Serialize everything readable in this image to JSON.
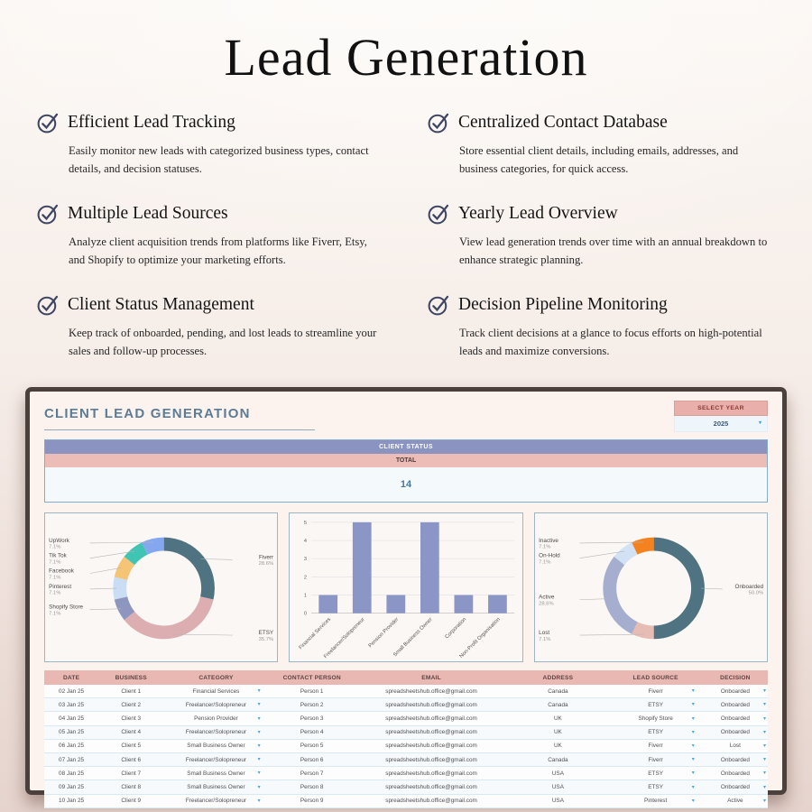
{
  "page": {
    "title": "Lead Generation"
  },
  "features": [
    {
      "title": "Efficient Lead Tracking",
      "desc": "Easily monitor new leads with categorized business types, contact details, and decision statuses."
    },
    {
      "title": "Centralized Contact Database",
      "desc": "Store essential client details, including emails, addresses, and business categories, for quick access."
    },
    {
      "title": "Multiple Lead Sources",
      "desc": "Analyze client acquisition trends from platforms like Fiverr, Etsy, and Shopify to optimize your marketing efforts."
    },
    {
      "title": "Yearly Lead Overview",
      "desc": "View lead generation trends over time with an annual breakdown to enhance strategic planning."
    },
    {
      "title": "Client Status Management",
      "desc": "Keep track of onboarded, pending, and lost leads to streamline your sales and follow-up processes."
    },
    {
      "title": "Decision Pipeline Monitoring",
      "desc": "Track client decisions at a glance to focus efforts on high-potential leads and maximize conversions."
    }
  ],
  "colors": {
    "check_icon": "#3e4563",
    "dashboard_title": "#5c7c95",
    "status_header_bar": "#8b93c1",
    "status_total_bar": "#ecbcb6",
    "table_header": "#eab8b3",
    "dropdown_arrow": "#45a7e0",
    "bar_fill": "#8c96c6"
  },
  "dashboard": {
    "title": "CLIENT LEAD GENERATION",
    "year_selector": {
      "label": "SELECT YEAR",
      "value": "2025",
      "caret_icon": "▾"
    },
    "status_summary": {
      "header": "CLIENT STATUS",
      "subheader": "TOTAL",
      "value": "14"
    },
    "table": {
      "columns": [
        "DATE",
        "BUSINESS",
        "CATEGORY",
        "CONTACT PERSON",
        "EMAIL",
        "ADDRESS",
        "LEAD SOURCE",
        "DECISION"
      ],
      "column_widths_pct": [
        7.5,
        9,
        14.5,
        12,
        21,
        14,
        13,
        9
      ],
      "dropdown_columns": [
        2,
        6,
        7
      ],
      "rows": [
        [
          "02 Jan 25",
          "Client 1",
          "Financial Services",
          "Person 1",
          "spreadsheetshub.office@gmail.com",
          "Canada",
          "Fiverr",
          "Onboarded"
        ],
        [
          "03 Jan 25",
          "Client 2",
          "Freelancer/Solopreneur",
          "Person 2",
          "spreadsheetshub.office@gmail.com",
          "Canada",
          "ETSY",
          "Onboarded"
        ],
        [
          "04 Jan 25",
          "Client 3",
          "Pension Provider",
          "Person 3",
          "spreadsheetshub.office@gmail.com",
          "UK",
          "Shopify Store",
          "Onboarded"
        ],
        [
          "05 Jan 25",
          "Client 4",
          "Freelancer/Solopreneur",
          "Person 4",
          "spreadsheetshub.office@gmail.com",
          "UK",
          "ETSY",
          "Onboarded"
        ],
        [
          "06 Jan 25",
          "Client 5",
          "Small Business Owner",
          "Person 5",
          "spreadsheetshub.office@gmail.com",
          "UK",
          "Fiverr",
          "Lost"
        ],
        [
          "07 Jan 25",
          "Client 6",
          "Freelancer/Solopreneur",
          "Person 6",
          "spreadsheetshub.office@gmail.com",
          "Canada",
          "Fiverr",
          "Onboarded"
        ],
        [
          "08 Jan 25",
          "Client 7",
          "Small Business Owner",
          "Person 7",
          "spreadsheetshub.office@gmail.com",
          "USA",
          "ETSY",
          "Onboarded"
        ],
        [
          "09 Jan 25",
          "Client 8",
          "Small Business Owner",
          "Person 8",
          "spreadsheetshub.office@gmail.com",
          "USA",
          "ETSY",
          "Onboarded"
        ],
        [
          "10 Jan 25",
          "Client 9",
          "Freelancer/Solopreneur",
          "Person 9",
          "spreadsheetshub.office@gmail.com",
          "USA",
          "Pinterest",
          "Active"
        ]
      ]
    }
  },
  "chart_data": [
    {
      "type": "pie",
      "name": "lead-source-donut",
      "donut": true,
      "slices": [
        {
          "label": "Fiverr",
          "value": 4,
          "pct": "28.6%",
          "color": "#4f7381"
        },
        {
          "label": "ETSY",
          "value": 5,
          "pct": "35.7%",
          "color": "#dcaeb2"
        },
        {
          "label": "Shopify Store",
          "value": 1,
          "pct": "7.1%",
          "color": "#8c96bf"
        },
        {
          "label": "Pinterest",
          "value": 1,
          "pct": "7.1%",
          "color": "#c9def4"
        },
        {
          "label": "Facebook",
          "value": 1,
          "pct": "7.1%",
          "color": "#f6c475"
        },
        {
          "label": "Tik Tok",
          "value": 1,
          "pct": "7.1%",
          "color": "#40c4b4"
        },
        {
          "label": "UpWork",
          "value": 1,
          "pct": "7.1%",
          "color": "#84a7f0"
        }
      ]
    },
    {
      "type": "bar",
      "name": "category-bar-chart",
      "categories": [
        "Financial Services",
        "Freelancer/Solopreneur",
        "Pension Provider",
        "Small Business Owner",
        "Corporation",
        "Non-Profit Organisation"
      ],
      "values": [
        1,
        5,
        1,
        5,
        1,
        1
      ],
      "ylim": [
        0,
        5
      ],
      "yticks": [
        0,
        1,
        2,
        3,
        4,
        5
      ],
      "bar_color": "#8c96c6",
      "grid": true
    },
    {
      "type": "pie",
      "name": "client-status-donut",
      "donut": true,
      "slices": [
        {
          "label": "Onboarded",
          "value": 7,
          "pct": "50.0%",
          "color": "#4f7381"
        },
        {
          "label": "Lost",
          "value": 1,
          "pct": "7.1%",
          "color": "#e7bcb5"
        },
        {
          "label": "Active",
          "value": 4,
          "pct": "28.6%",
          "color": "#a6aed0"
        },
        {
          "label": "On-Hold",
          "value": 1,
          "pct": "7.1%",
          "color": "#d2e2f4"
        },
        {
          "label": "Inactive",
          "value": 1,
          "pct": "7.1%",
          "color": "#f5821f"
        }
      ]
    }
  ]
}
